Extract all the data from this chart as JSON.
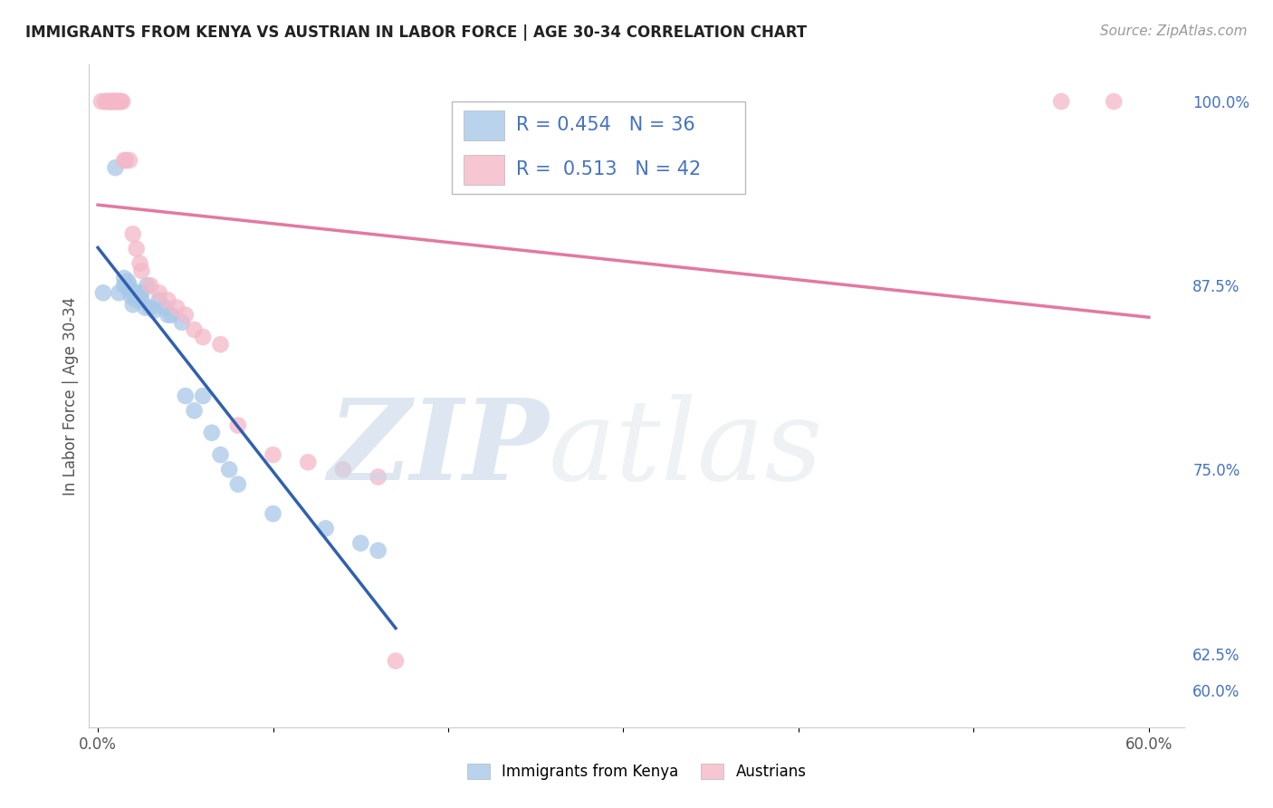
{
  "title": "IMMIGRANTS FROM KENYA VS AUSTRIAN IN LABOR FORCE | AGE 30-34 CORRELATION CHART",
  "source": "Source: ZipAtlas.com",
  "ylabel": "In Labor Force | Age 30-34",
  "background_color": "#ffffff",
  "kenya_color": "#a8c8e8",
  "austrian_color": "#f4b8c8",
  "kenya_line_color": "#3060b0",
  "austrian_line_color": "#e06090",
  "kenya_R": 0.454,
  "kenya_N": 36,
  "austrian_R": 0.513,
  "austrian_N": 42,
  "xlim": [
    -0.005,
    0.62
  ],
  "ylim": [
    0.575,
    1.025
  ],
  "y_ticks": [
    0.6,
    0.625,
    0.75,
    0.875,
    1.0
  ],
  "x_ticks": [
    0.0,
    0.1,
    0.2,
    0.3,
    0.4,
    0.5,
    0.6
  ],
  "kenya_x": [
    0.003,
    0.01,
    0.012,
    0.015,
    0.015,
    0.017,
    0.018,
    0.018,
    0.019,
    0.02,
    0.021,
    0.022,
    0.022,
    0.024,
    0.025,
    0.025,
    0.027,
    0.028,
    0.03,
    0.032,
    0.035,
    0.038,
    0.04,
    0.042,
    0.048,
    0.05,
    0.055,
    0.06,
    0.065,
    0.07,
    0.075,
    0.08,
    0.1,
    0.13,
    0.15,
    0.16
  ],
  "kenya_y": [
    0.87,
    0.955,
    0.87,
    0.875,
    0.88,
    0.878,
    0.872,
    0.875,
    0.868,
    0.862,
    0.87,
    0.868,
    0.865,
    0.87,
    0.87,
    0.865,
    0.86,
    0.875,
    0.86,
    0.858,
    0.865,
    0.86,
    0.855,
    0.855,
    0.85,
    0.8,
    0.79,
    0.8,
    0.775,
    0.76,
    0.75,
    0.74,
    0.72,
    0.71,
    0.7,
    0.695
  ],
  "austrian_x": [
    0.002,
    0.004,
    0.005,
    0.006,
    0.006,
    0.007,
    0.008,
    0.008,
    0.008,
    0.009,
    0.009,
    0.01,
    0.01,
    0.011,
    0.012,
    0.012,
    0.013,
    0.013,
    0.014,
    0.015,
    0.016,
    0.018,
    0.02,
    0.022,
    0.024,
    0.025,
    0.03,
    0.035,
    0.04,
    0.045,
    0.05,
    0.055,
    0.06,
    0.07,
    0.08,
    0.1,
    0.12,
    0.14,
    0.16,
    0.17,
    0.55,
    0.58
  ],
  "austrian_y": [
    1.0,
    1.0,
    1.0,
    1.0,
    1.0,
    1.0,
    1.0,
    1.0,
    1.0,
    1.0,
    1.0,
    1.0,
    1.0,
    1.0,
    1.0,
    1.0,
    1.0,
    1.0,
    1.0,
    0.96,
    0.96,
    0.96,
    0.91,
    0.9,
    0.89,
    0.885,
    0.875,
    0.87,
    0.865,
    0.86,
    0.855,
    0.845,
    0.84,
    0.835,
    0.78,
    0.76,
    0.755,
    0.75,
    0.745,
    0.62,
    1.0,
    1.0
  ]
}
